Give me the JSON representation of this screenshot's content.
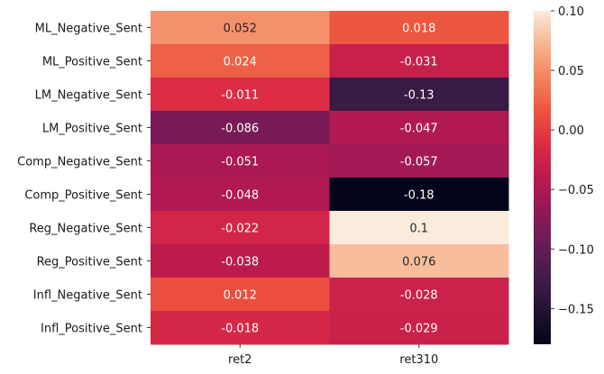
{
  "chart_data": {
    "type": "heatmap",
    "title": "",
    "xlabel": "",
    "ylabel": "",
    "columns": [
      "ret2",
      "ret310"
    ],
    "rows": [
      "ML_Negative_Sent",
      "ML_Positive_Sent",
      "LM_Negative_Sent",
      "LM_Positive_Sent",
      "Comp_Negative_Sent",
      "Comp_Positive_Sent",
      "Reg_Negative_Sent",
      "Reg_Positive_Sent",
      "Infl_Negative_Sent",
      "Infl_Positive_Sent"
    ],
    "values": [
      [
        0.052,
        0.018
      ],
      [
        0.024,
        -0.031
      ],
      [
        -0.011,
        -0.13
      ],
      [
        -0.086,
        -0.047
      ],
      [
        -0.051,
        -0.057
      ],
      [
        -0.048,
        -0.18
      ],
      [
        -0.022,
        0.1
      ],
      [
        -0.038,
        0.076
      ],
      [
        0.012,
        -0.028
      ],
      [
        -0.018,
        -0.029
      ]
    ],
    "value_labels": [
      [
        "0.052",
        "0.018"
      ],
      [
        "0.024",
        "-0.031"
      ],
      [
        "-0.011",
        "-0.13"
      ],
      [
        "-0.086",
        "-0.047"
      ],
      [
        "-0.051",
        "-0.057"
      ],
      [
        "-0.048",
        "-0.18"
      ],
      [
        "-0.022",
        "0.1"
      ],
      [
        "-0.038",
        "0.076"
      ],
      [
        "0.012",
        "-0.028"
      ],
      [
        "-0.018",
        "-0.029"
      ]
    ],
    "colormap": "rocket",
    "vmin": -0.18,
    "vmax": 0.1,
    "colorbar": {
      "ticks": [
        0.1,
        0.05,
        0.0,
        -0.05,
        -0.1,
        -0.15
      ],
      "tick_labels": [
        "0.10",
        "0.05",
        "0.00",
        "−0.05",
        "−0.10",
        "−0.15"
      ]
    }
  }
}
